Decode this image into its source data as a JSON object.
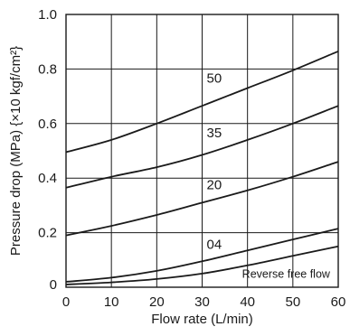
{
  "chart_data": {
    "type": "line",
    "xlabel": "Flow rate (L/min)",
    "ylabel": "Pressure drop (MPa) {×10 kgf/cm²}",
    "xlim": [
      0,
      60
    ],
    "ylim": [
      0,
      1.0
    ],
    "x_ticks": [
      "0",
      "10",
      "20",
      "30",
      "40",
      "50",
      "60"
    ],
    "y_ticks": [
      "0",
      "0.2",
      "0.4",
      "0.6",
      "0.8",
      "1.0"
    ],
    "grid": true,
    "series": [
      {
        "name": "50",
        "x": [
          0,
          10,
          20,
          30,
          40,
          50,
          60
        ],
        "y": [
          0.495,
          0.54,
          0.6,
          0.665,
          0.73,
          0.795,
          0.865
        ]
      },
      {
        "name": "35",
        "x": [
          0,
          10,
          20,
          30,
          40,
          50,
          60
        ],
        "y": [
          0.365,
          0.405,
          0.44,
          0.485,
          0.54,
          0.6,
          0.665
        ]
      },
      {
        "name": "20",
        "x": [
          0,
          10,
          20,
          30,
          40,
          50,
          60
        ],
        "y": [
          0.19,
          0.225,
          0.265,
          0.31,
          0.355,
          0.405,
          0.46
        ]
      },
      {
        "name": "04",
        "x": [
          0,
          10,
          20,
          30,
          40,
          50,
          60
        ],
        "y": [
          0.02,
          0.035,
          0.06,
          0.095,
          0.135,
          0.175,
          0.215
        ]
      },
      {
        "name": "Reverse free flow",
        "x": [
          0,
          10,
          20,
          30,
          40,
          50,
          60
        ],
        "y": [
          0.01,
          0.018,
          0.03,
          0.05,
          0.08,
          0.115,
          0.15
        ]
      }
    ],
    "curve_labels": [
      {
        "text": "50",
        "x": 31,
        "y": 0.75
      },
      {
        "text": "35",
        "x": 31,
        "y": 0.55
      },
      {
        "text": "20",
        "x": 31,
        "y": 0.36
      },
      {
        "text": "04",
        "x": 31,
        "y": 0.14
      }
    ],
    "note": {
      "text": "Reverse free flow",
      "x": 48.5,
      "y": 0.035
    }
  }
}
